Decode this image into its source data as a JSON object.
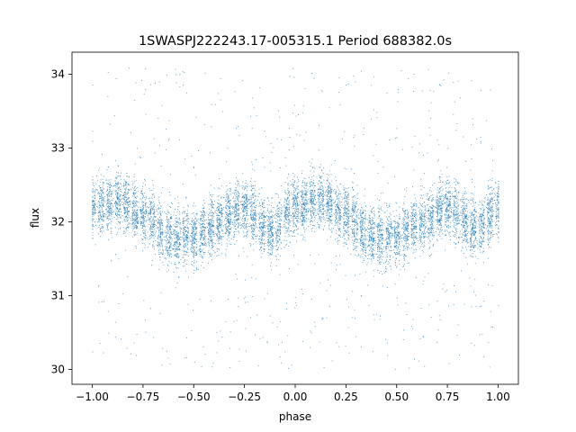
{
  "chart_data": {
    "type": "scatter",
    "title": "1SWASPJ222243.17-005315.1 Period 688382.0s",
    "xlabel": "phase",
    "ylabel": "flux",
    "xlim": [
      -1.1,
      1.1
    ],
    "ylim": [
      29.8,
      34.3
    ],
    "x_ticks": [
      -1.0,
      -0.75,
      -0.5,
      -0.25,
      0.0,
      0.25,
      0.5,
      0.75,
      1.0
    ],
    "x_tick_labels": [
      "−1.00",
      "−0.75",
      "−0.50",
      "−0.25",
      "0.00",
      "0.25",
      "0.50",
      "0.75",
      "1.00"
    ],
    "y_ticks": [
      30,
      31,
      32,
      33,
      34
    ],
    "y_tick_labels": [
      "30",
      "31",
      "32",
      "33",
      "34"
    ],
    "grid": false,
    "marker_color": "#1f77b4",
    "series": [
      {
        "phase_range": [
          -1.0,
          1.0
        ],
        "flux_center_by_phase": {
          "x": [
            -1.0,
            -0.875,
            -0.75,
            -0.625,
            -0.5,
            -0.375,
            -0.25,
            -0.125,
            0.0,
            0.125,
            0.25,
            0.375,
            0.5,
            0.625,
            0.75,
            0.875,
            1.0
          ],
          "y": [
            32.2,
            32.3,
            32.1,
            31.8,
            31.8,
            32.0,
            32.2,
            31.9,
            32.2,
            32.3,
            32.1,
            31.8,
            31.8,
            32.0,
            32.2,
            31.9,
            32.2
          ]
        },
        "flux_core_spread": 0.35,
        "flux_outlier_range": [
          30.0,
          34.1
        ]
      }
    ]
  }
}
